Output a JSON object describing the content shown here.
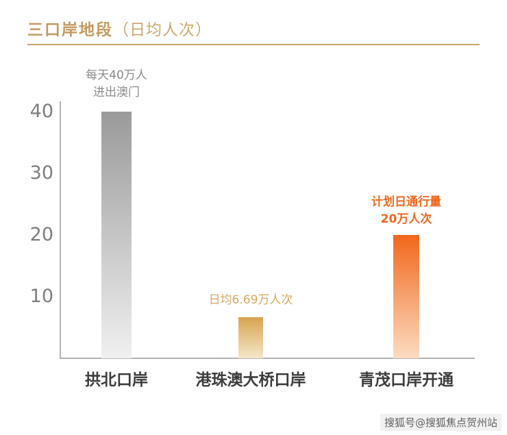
{
  "header": {
    "title_main": "三口岸地段",
    "title_sub": "（日均人次）"
  },
  "chart_data": {
    "type": "bar",
    "title": "三口岸地段（日均人次）",
    "categories": [
      "拱北口岸",
      "港珠澳大桥口岸",
      "青茂口岸开通"
    ],
    "values": [
      40,
      6.69,
      20
    ],
    "annotations": [
      "每天40万人\n进出澳门",
      "日均6.69万人次",
      "计划日通行量\n20万人次"
    ],
    "yticks": [
      "40",
      "30",
      "20",
      "10"
    ],
    "ylim": [
      0,
      41
    ],
    "grid": false,
    "legend": "none",
    "bar_colors_top": [
      "#9a9a9a",
      "#d7a44f",
      "#f2671b"
    ],
    "bar_colors_bottom": [
      "#f0f0f0",
      "#f4e7c8",
      "#fcdcc2"
    ]
  },
  "watermark": "搜狐号@搜狐焦点贺州站",
  "colors": {
    "accent_gold": "#c49a62",
    "orange": "#f2671b",
    "gray_text": "#8a8a8a",
    "axis_gray": "#b3b3b3"
  }
}
